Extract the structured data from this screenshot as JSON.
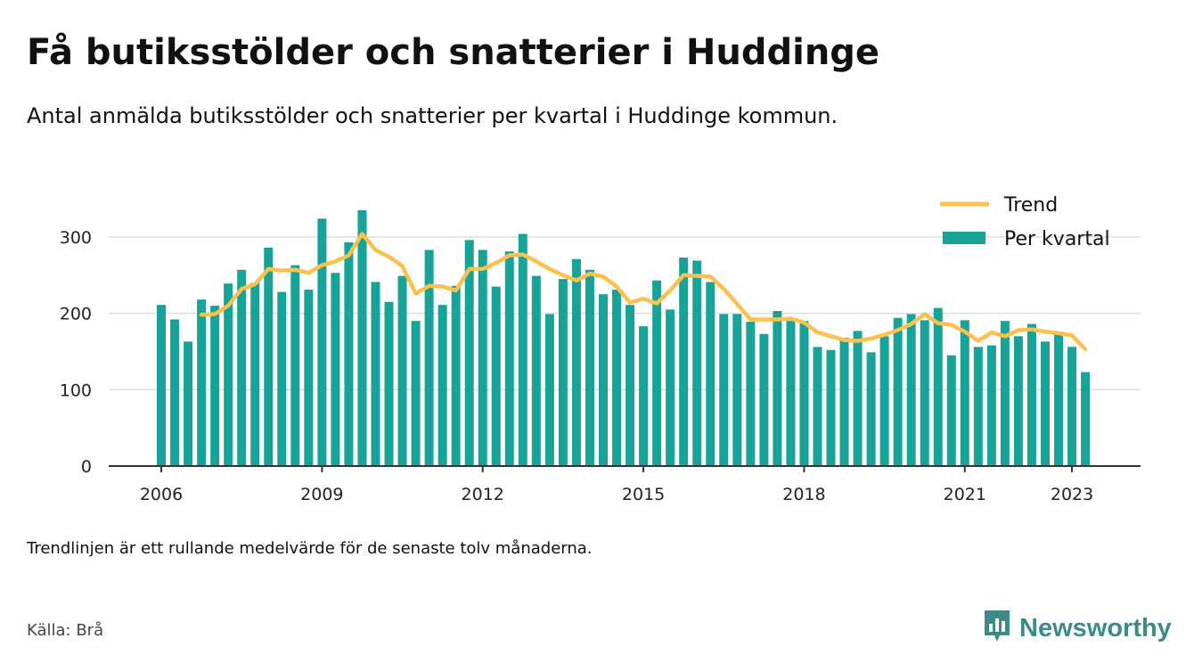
{
  "title": "Få butiksstölder och snatterier i Huddinge",
  "subtitle": "Antal anmälda butiksstölder och snatterier per kvartal i Huddinge kommun.",
  "note": "Trendlinjen är ett rullande medelvärde för de senaste tolv månaderna.",
  "source": "Källa: Brå",
  "brand": {
    "name": "Newsworthy",
    "icon": "bar-chart-logo-icon",
    "color": "#3a8c87"
  },
  "chart_data": {
    "type": "bar",
    "title": "Få butiksstölder och snatterier i Huddinge",
    "xlabel": "",
    "ylabel": "",
    "ylim": [
      0,
      330
    ],
    "yticks": [
      0,
      100,
      200,
      300
    ],
    "xticks": [
      "2006",
      "2009",
      "2012",
      "2015",
      "2018",
      "2021",
      "2023"
    ],
    "grid": true,
    "legend_position": "top-right",
    "colors": {
      "bars": "#17a398",
      "trend": "#fbc04d",
      "grid": "#dddddd",
      "axis": "#333333"
    },
    "x": [
      "2006 Q1",
      "2006 Q2",
      "2006 Q3",
      "2006 Q4",
      "2007 Q1",
      "2007 Q2",
      "2007 Q3",
      "2007 Q4",
      "2008 Q1",
      "2008 Q2",
      "2008 Q3",
      "2008 Q4",
      "2009 Q1",
      "2009 Q2",
      "2009 Q3",
      "2009 Q4",
      "2010 Q1",
      "2010 Q2",
      "2010 Q3",
      "2010 Q4",
      "2011 Q1",
      "2011 Q2",
      "2011 Q3",
      "2011 Q4",
      "2012 Q1",
      "2012 Q2",
      "2012 Q3",
      "2012 Q4",
      "2013 Q1",
      "2013 Q2",
      "2013 Q3",
      "2013 Q4",
      "2014 Q1",
      "2014 Q2",
      "2014 Q3",
      "2014 Q4",
      "2015 Q1",
      "2015 Q2",
      "2015 Q3",
      "2015 Q4",
      "2016 Q1",
      "2016 Q2",
      "2016 Q3",
      "2016 Q4",
      "2017 Q1",
      "2017 Q2",
      "2017 Q3",
      "2017 Q4",
      "2018 Q1",
      "2018 Q2",
      "2018 Q3",
      "2018 Q4",
      "2019 Q1",
      "2019 Q2",
      "2019 Q3",
      "2019 Q4",
      "2020 Q1",
      "2020 Q2",
      "2020 Q3",
      "2020 Q4",
      "2021 Q1",
      "2021 Q2",
      "2021 Q3",
      "2021 Q4",
      "2022 Q1",
      "2022 Q2",
      "2022 Q3",
      "2022 Q4",
      "2023 Q1",
      "2023 Q2"
    ],
    "series": [
      {
        "name": "Per kvartal",
        "type": "bar",
        "values": [
          211,
          192,
          163,
          218,
          210,
          239,
          257,
          240,
          286,
          228,
          263,
          231,
          324,
          253,
          293,
          335,
          241,
          215,
          249,
          190,
          283,
          211,
          236,
          296,
          283,
          235,
          281,
          304,
          249,
          199,
          245,
          271,
          257,
          225,
          231,
          211,
          183,
          243,
          205,
          273,
          269,
          241,
          199,
          199,
          189,
          173,
          203,
          190,
          190,
          156,
          152,
          168,
          177,
          149,
          170,
          194,
          199,
          191,
          207,
          145,
          191,
          156,
          158,
          190,
          170,
          186,
          163,
          176,
          156,
          123
        ]
      },
      {
        "name": "Trend",
        "type": "line",
        "values": [
          null,
          null,
          null,
          198,
          199,
          210,
          232,
          238,
          258,
          256,
          257,
          253,
          263,
          268,
          276,
          304,
          283,
          274,
          262,
          226,
          236,
          235,
          230,
          258,
          258,
          266,
          276,
          277,
          268,
          258,
          250,
          243,
          252,
          248,
          235,
          214,
          219,
          213,
          230,
          250,
          249,
          248,
          232,
          212,
          192,
          192,
          192,
          193,
          188,
          175,
          170,
          165,
          164,
          167,
          172,
          178,
          186,
          199,
          187,
          185,
          176,
          164,
          175,
          170,
          178,
          179,
          176,
          174,
          171,
          153
        ]
      }
    ]
  }
}
